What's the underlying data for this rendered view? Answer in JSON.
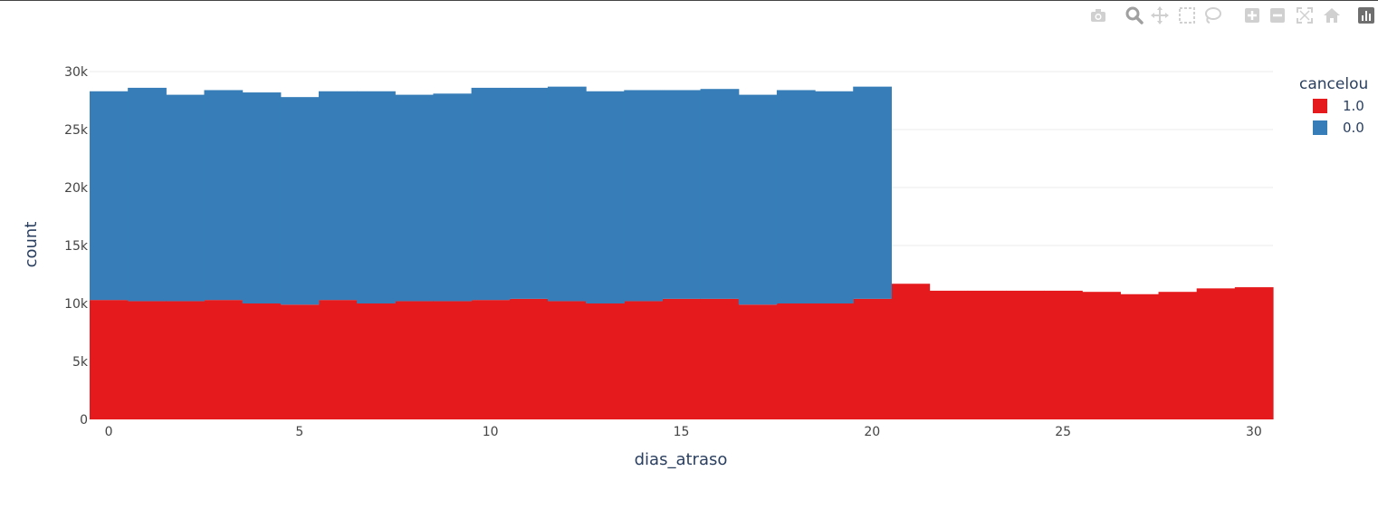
{
  "modebar": {
    "buttons": [
      {
        "name": "camera-icon"
      },
      {
        "name": "zoom-icon"
      },
      {
        "name": "pan-icon"
      },
      {
        "name": "box-select-icon"
      },
      {
        "name": "lasso-select-icon"
      },
      {
        "name": "zoom-in-icon"
      },
      {
        "name": "zoom-out-icon"
      },
      {
        "name": "autoscale-icon"
      },
      {
        "name": "home-icon"
      },
      {
        "name": "plotly-logo-icon"
      }
    ]
  },
  "chart_data": {
    "type": "bar",
    "barmode": "stack",
    "xlabel": "dias_atraso",
    "ylabel": "count",
    "xlim": [
      -0.5,
      30.5
    ],
    "ylim": [
      0,
      30000
    ],
    "xticks": [
      0,
      5,
      10,
      15,
      20,
      25,
      30
    ],
    "xtick_labels": [
      "0",
      "5",
      "10",
      "15",
      "20",
      "25",
      "30"
    ],
    "yticks": [
      0,
      5000,
      10000,
      15000,
      20000,
      25000,
      30000
    ],
    "ytick_labels": [
      "0",
      "5k",
      "10k",
      "15k",
      "20k",
      "25k",
      "30k"
    ],
    "grid": "horizontal",
    "legend": {
      "title": "cancelou",
      "placement": "top-right"
    },
    "x": [
      0,
      1,
      2,
      3,
      4,
      5,
      6,
      7,
      8,
      9,
      10,
      11,
      12,
      13,
      14,
      15,
      16,
      17,
      18,
      19,
      20,
      21,
      22,
      23,
      24,
      25,
      26,
      27,
      28,
      29,
      30
    ],
    "series": [
      {
        "name": "1.0",
        "color": "#e41a1c",
        "values": [
          10300,
          10200,
          10200,
          10300,
          10000,
          9900,
          10300,
          10000,
          10200,
          10200,
          10300,
          10400,
          10200,
          10000,
          10200,
          10400,
          10400,
          9900,
          10000,
          10000,
          10400,
          11700,
          11100,
          11100,
          11100,
          11100,
          11000,
          10800,
          11000,
          11300,
          11400
        ]
      },
      {
        "name": "0.0",
        "color": "#377eb8",
        "values": [
          18000,
          18400,
          17800,
          18100,
          18200,
          17900,
          18000,
          18300,
          17800,
          17900,
          18300,
          18200,
          18500,
          18300,
          18200,
          18000,
          18100,
          18100,
          18400,
          18300,
          18300,
          0,
          0,
          0,
          0,
          0,
          0,
          0,
          0,
          0,
          0
        ]
      }
    ]
  }
}
